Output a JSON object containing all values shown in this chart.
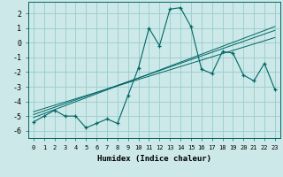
{
  "xlabel": "Humidex (Indice chaleur)",
  "ylabel": "",
  "bg_color": "#cce8e8",
  "grid_color": "#99cccc",
  "line_color": "#006666",
  "x": [
    0,
    1,
    2,
    3,
    4,
    5,
    6,
    7,
    8,
    9,
    10,
    11,
    12,
    13,
    14,
    15,
    16,
    17,
    18,
    19,
    20,
    21,
    22,
    23
  ],
  "y_main": [
    -5.4,
    -5.0,
    -4.6,
    -5.0,
    -5.0,
    -5.8,
    -5.5,
    -5.2,
    -5.5,
    -3.6,
    -1.7,
    1.0,
    -0.2,
    2.3,
    2.4,
    1.1,
    -1.8,
    -2.1,
    -0.6,
    -0.7,
    -2.2,
    -2.6,
    -1.4,
    -3.2
  ],
  "y_reg1": [
    -4.9,
    -4.65,
    -4.4,
    -4.15,
    -3.9,
    -3.65,
    -3.4,
    -3.15,
    -2.9,
    -2.65,
    -2.4,
    -2.15,
    -1.9,
    -1.65,
    -1.4,
    -1.15,
    -0.9,
    -0.65,
    -0.4,
    -0.15,
    0.1,
    0.35,
    0.6,
    0.85
  ],
  "y_reg2": [
    -4.7,
    -4.48,
    -4.26,
    -4.04,
    -3.82,
    -3.6,
    -3.38,
    -3.16,
    -2.94,
    -2.72,
    -2.5,
    -2.28,
    -2.06,
    -1.84,
    -1.62,
    -1.4,
    -1.18,
    -0.96,
    -0.74,
    -0.52,
    -0.3,
    -0.08,
    0.14,
    0.36
  ],
  "y_reg3": [
    -5.1,
    -4.83,
    -4.56,
    -4.29,
    -4.02,
    -3.75,
    -3.48,
    -3.21,
    -2.94,
    -2.67,
    -2.4,
    -2.13,
    -1.86,
    -1.59,
    -1.32,
    -1.05,
    -0.78,
    -0.51,
    -0.24,
    0.03,
    0.3,
    0.57,
    0.84,
    1.11
  ],
  "ylim": [
    -6.5,
    2.8
  ],
  "yticks": [
    -6,
    -5,
    -4,
    -3,
    -2,
    -1,
    0,
    1,
    2
  ],
  "xlim": [
    -0.5,
    23.5
  ]
}
